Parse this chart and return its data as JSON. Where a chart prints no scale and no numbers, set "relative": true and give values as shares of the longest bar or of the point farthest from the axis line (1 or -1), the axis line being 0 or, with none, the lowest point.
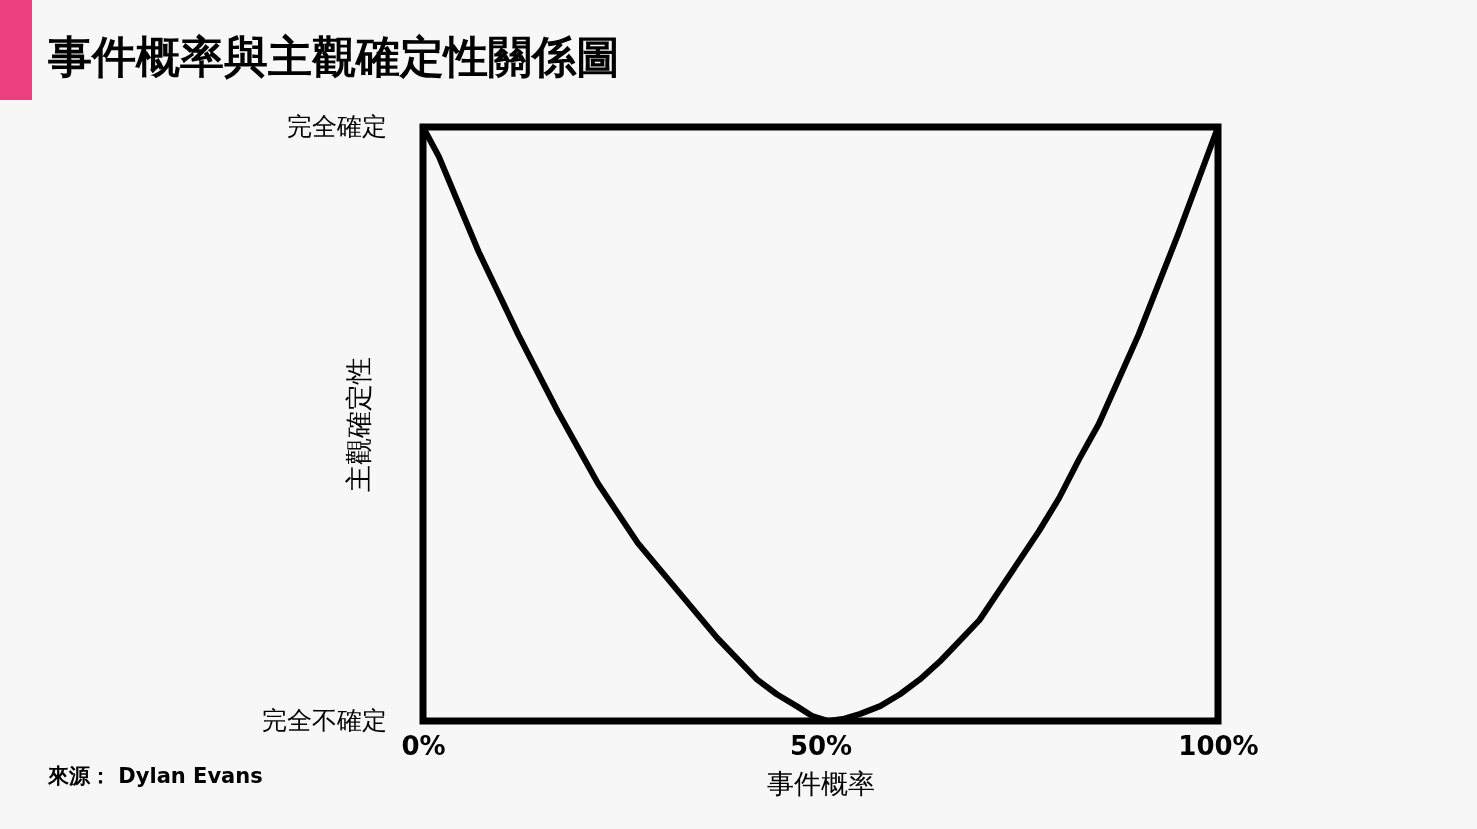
{
  "chart_data": {
    "type": "line",
    "title": "事件概率與主觀確定性關係圖",
    "xlabel": "事件概率",
    "ylabel": "主觀確定性",
    "x": [
      0,
      2,
      4.5,
      7,
      9.5,
      12,
      14.5,
      17,
      19.5,
      22,
      24.5,
      27,
      29.5,
      32,
      34.5,
      37,
      39.5,
      42,
      44.5,
      47,
      49,
      51,
      53,
      55,
      57.5,
      60,
      62.5,
      65,
      67.5,
      70,
      72.5,
      75,
      77.5,
      80,
      82.5,
      85,
      87.5,
      90,
      92.5,
      95,
      97.5,
      100
    ],
    "series": [
      {
        "color": "#000000",
        "values": [
          1,
          0.95,
          0.87,
          0.79,
          0.72,
          0.65,
          0.585,
          0.52,
          0.46,
          0.4,
          0.35,
          0.3,
          0.26,
          0.22,
          0.18,
          0.14,
          0.105,
          0.07,
          0.045,
          0.025,
          0.008,
          0,
          0.004,
          0.012,
          0.025,
          0.045,
          0.07,
          0.1,
          0.135,
          0.17,
          0.22,
          0.27,
          0.32,
          0.375,
          0.44,
          0.5,
          0.575,
          0.65,
          0.735,
          0.82,
          0.91,
          1
        ]
      }
    ],
    "xlim": [
      0,
      100
    ],
    "xticks": [
      {
        "value": 0,
        "label": "0%"
      },
      {
        "value": 50,
        "label": "50%"
      },
      {
        "value": 100,
        "label": "100%"
      }
    ],
    "relative": true,
    "grid": false,
    "marker": "none",
    "line_style": "solid",
    "annotations": [
      "完全確定",
      "完全不確定",
      "來源： Dylan Evans"
    ]
  }
}
